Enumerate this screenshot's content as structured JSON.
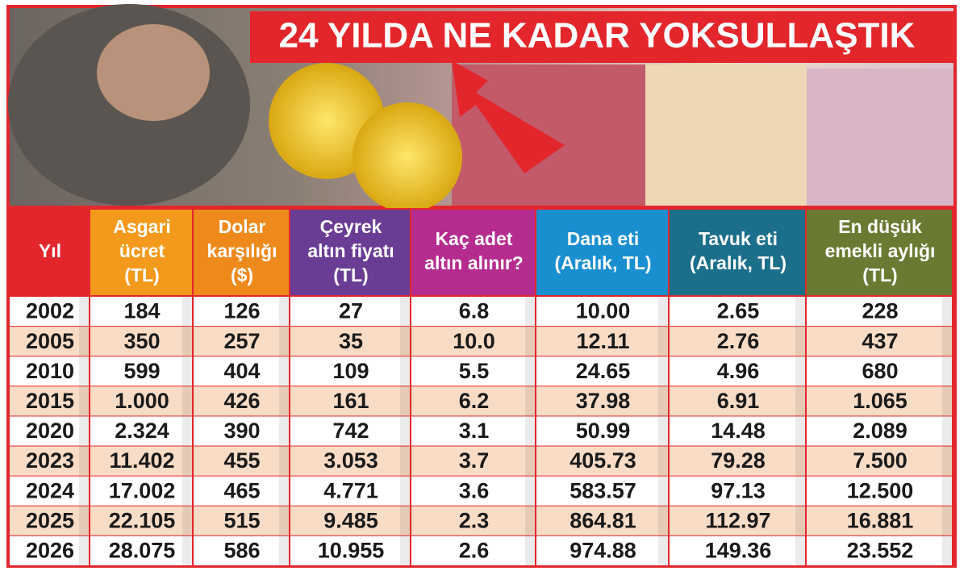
{
  "header": {
    "title": "24 YILDA NE KADAR YOKSULLAŞTIK"
  },
  "table": {
    "headers": [
      [
        "Yıl"
      ],
      [
        "Asgari",
        "ücret",
        "(TL)"
      ],
      [
        "Dolar",
        "karşılığı",
        "($)"
      ],
      [
        "Çeyrek",
        "altın fiyatı",
        "(TL)"
      ],
      [
        "Kaç adet",
        "altın alınır?"
      ],
      [
        "Dana eti",
        "(Aralık, TL)"
      ],
      [
        "Tavuk eti",
        "(Aralık, TL)"
      ],
      [
        "En düşük",
        "emekli aylığı",
        "(TL)"
      ]
    ],
    "rows": [
      [
        "2002",
        "184",
        "126",
        "27",
        "6.8",
        "10.00",
        "2.65",
        "228"
      ],
      [
        "2005",
        "350",
        "257",
        "35",
        "10.0",
        "12.11",
        "2.76",
        "437"
      ],
      [
        "2010",
        "599",
        "404",
        "109",
        "5.5",
        "24.65",
        "4.96",
        "680"
      ],
      [
        "2015",
        "1.000",
        "426",
        "161",
        "6.2",
        "37.98",
        "6.91",
        "1.065"
      ],
      [
        "2020",
        "2.324",
        "390",
        "742",
        "3.1",
        "50.99",
        "14.48",
        "2.089"
      ],
      [
        "2023",
        "11.402",
        "455",
        "3.053",
        "3.7",
        "405.73",
        "79.28",
        "7.500"
      ],
      [
        "2024",
        "17.002",
        "465",
        "4.771",
        "3.6",
        "583.57",
        "97.13",
        "12.500"
      ],
      [
        "2025",
        "22.105",
        "515",
        "9.485",
        "2.3",
        "864.81",
        "112.97",
        "16.881"
      ],
      [
        "2026",
        "28.075",
        "586",
        "10.955",
        "2.6",
        "974.88",
        "149.36",
        "23.552"
      ]
    ]
  }
}
